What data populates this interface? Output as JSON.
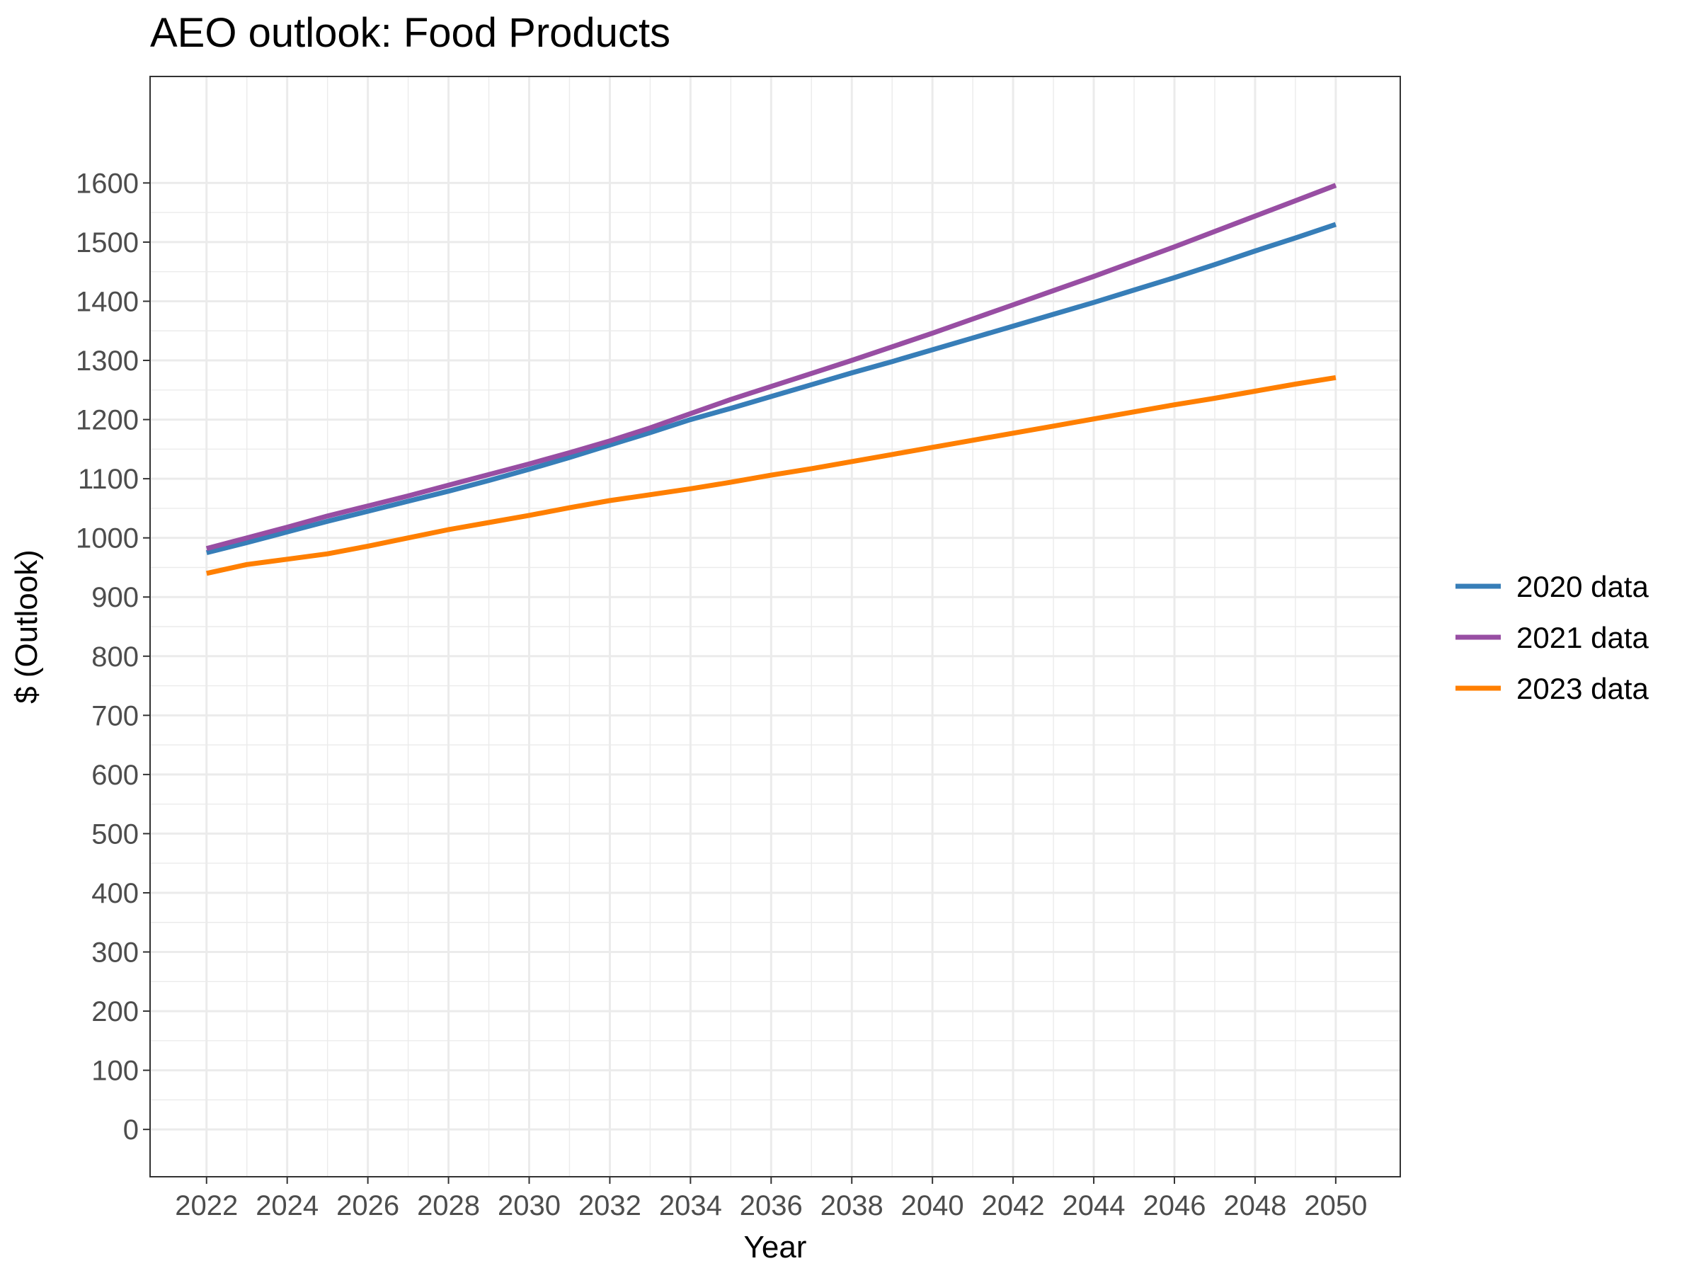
{
  "chart_data": {
    "type": "line",
    "title": "AEO outlook: Food Products",
    "xlabel": "Year",
    "ylabel": "$ (Outlook)",
    "xlim": [
      2020.6,
      2051.6
    ],
    "ylim": [
      -80,
      1780
    ],
    "x_ticks": [
      2022,
      2024,
      2026,
      2028,
      2030,
      2032,
      2034,
      2036,
      2038,
      2040,
      2042,
      2044,
      2046,
      2048,
      2050
    ],
    "y_ticks": [
      0,
      100,
      200,
      300,
      400,
      500,
      600,
      700,
      800,
      900,
      1000,
      1100,
      1200,
      1300,
      1400,
      1500,
      1600
    ],
    "x_tick_labels": [
      "2022",
      "2024",
      "2026",
      "2028",
      "2030",
      "2032",
      "2034",
      "2036",
      "2038",
      "2040",
      "2042",
      "2044",
      "2046",
      "2048",
      "2050"
    ],
    "y_tick_labels": [
      "0",
      "100",
      "200",
      "300",
      "400",
      "500",
      "600",
      "700",
      "800",
      "900",
      "1000",
      "1100",
      "1200",
      "1300",
      "1400",
      "1500",
      "1600"
    ],
    "grid": true,
    "legend_position": "right",
    "x": [
      2022,
      2023,
      2024,
      2025,
      2026,
      2027,
      2028,
      2029,
      2030,
      2031,
      2032,
      2033,
      2034,
      2035,
      2036,
      2037,
      2038,
      2039,
      2040,
      2041,
      2042,
      2043,
      2044,
      2045,
      2046,
      2047,
      2048,
      2049,
      2050
    ],
    "series": [
      {
        "name": "2020 data",
        "color": "#377eb8",
        "values": [
          975,
          992,
          1010,
          1028,
          1045,
          1062,
          1079,
          1097,
          1116,
          1136,
          1157,
          1178,
          1200,
          1219,
          1239,
          1259,
          1279,
          1298,
          1318,
          1338,
          1358,
          1378,
          1398,
          1419,
          1440,
          1462,
          1485,
          1507,
          1530
        ]
      },
      {
        "name": "2021 data",
        "color": "#984ea3",
        "values": [
          982,
          1000,
          1018,
          1037,
          1054,
          1071,
          1089,
          1107,
          1125,
          1144,
          1164,
          1186,
          1210,
          1234,
          1256,
          1278,
          1300,
          1323,
          1346,
          1370,
          1394,
          1418,
          1442,
          1467,
          1492,
          1518,
          1544,
          1570,
          1596
        ]
      },
      {
        "name": "2023 data",
        "color": "#ff7f00",
        "values": [
          940,
          955,
          964,
          973,
          986,
          1000,
          1014,
          1026,
          1038,
          1051,
          1063,
          1073,
          1083,
          1094,
          1106,
          1117,
          1129,
          1141,
          1153,
          1165,
          1177,
          1189,
          1201,
          1213,
          1225,
          1236,
          1248,
          1260,
          1271
        ]
      }
    ]
  }
}
